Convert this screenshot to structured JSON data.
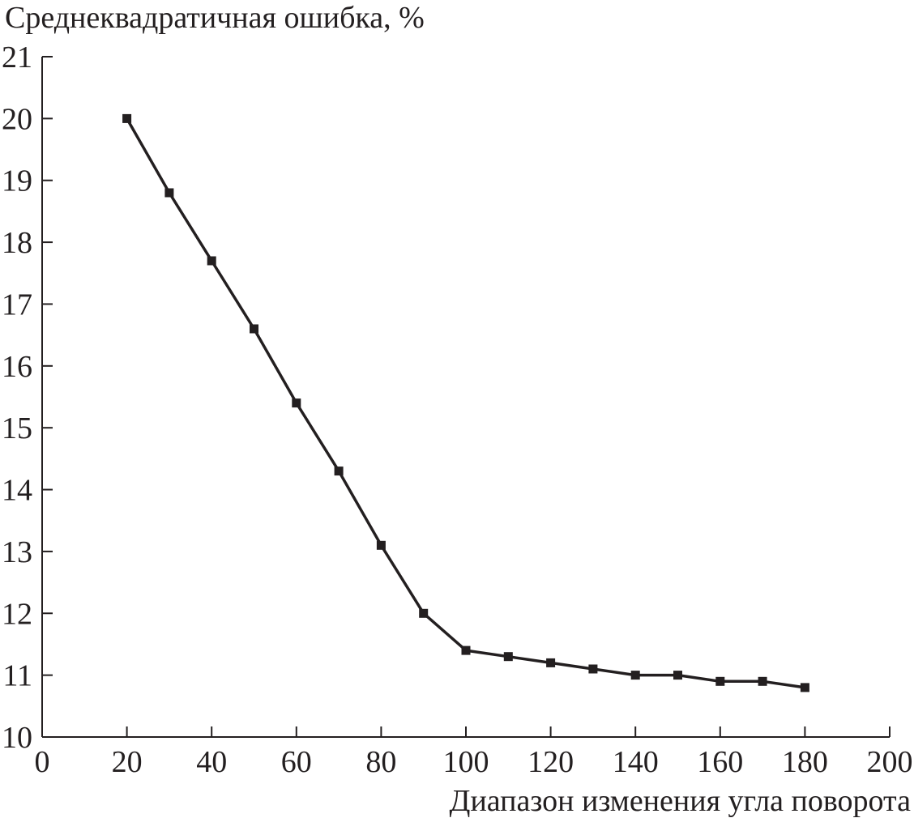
{
  "chart_data": {
    "type": "line",
    "ylabel": "Среднеквадратичная ошибка, %",
    "xlabel": "Диапазон изменения угла поворота",
    "xlim": [
      0,
      200
    ],
    "ylim": [
      10,
      21
    ],
    "x_ticks": [
      0,
      20,
      40,
      60,
      80,
      100,
      120,
      140,
      160,
      180,
      200
    ],
    "y_ticks": [
      10,
      11,
      12,
      13,
      14,
      15,
      16,
      17,
      18,
      19,
      20,
      21
    ],
    "grid": false,
    "marker": "square",
    "series": [
      {
        "x": [
          20,
          30,
          40,
          50,
          60,
          70,
          80,
          90,
          100,
          110,
          120,
          130,
          140,
          150,
          160,
          170,
          180
        ],
        "y": [
          20.0,
          18.8,
          17.7,
          16.6,
          15.4,
          14.3,
          13.1,
          12.0,
          11.4,
          11.3,
          11.2,
          11.1,
          11.0,
          11.0,
          10.9,
          10.9,
          10.8
        ]
      }
    ],
    "colors": {
      "line": "#231f20",
      "axis": "#231f20"
    }
  }
}
